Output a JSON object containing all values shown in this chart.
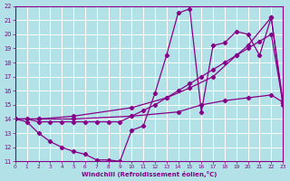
{
  "xlabel": "Windchill (Refroidissement éolien,°C)",
  "xlim": [
    0,
    23
  ],
  "ylim": [
    11,
    22
  ],
  "yticks": [
    11,
    12,
    13,
    14,
    15,
    16,
    17,
    18,
    19,
    20,
    21,
    22
  ],
  "xticks": [
    0,
    1,
    2,
    3,
    4,
    5,
    6,
    7,
    8,
    9,
    10,
    11,
    12,
    13,
    14,
    15,
    16,
    17,
    18,
    19,
    20,
    21,
    22,
    23
  ],
  "background_color": "#b2e2e8",
  "line_color": "#880088",
  "grid_color": "#c8e8e8",
  "lines": [
    {
      "x": [
        0,
        1,
        2,
        3,
        4,
        5,
        6,
        7,
        8,
        9,
        10,
        11,
        12,
        13,
        14,
        15,
        16,
        17,
        18,
        19,
        20,
        21,
        22,
        23
      ],
      "y": [
        14,
        13.8,
        13.0,
        12.4,
        12.0,
        11.7,
        11.5,
        11.1,
        11.1,
        11.0,
        13.2,
        13.5,
        15.8,
        18.5,
        21.5,
        21.8,
        14.5,
        19.2,
        19.4,
        20.2,
        20.0,
        18.5,
        21.2,
        15.3
      ]
    },
    {
      "x": [
        0,
        1,
        2,
        3,
        4,
        5,
        6,
        7,
        8,
        9,
        10,
        11,
        12,
        13,
        14,
        15,
        16,
        17,
        18,
        19,
        20,
        21,
        22,
        23
      ],
      "y": [
        14.0,
        14.0,
        13.8,
        13.8,
        13.8,
        13.8,
        13.8,
        13.8,
        13.8,
        13.8,
        14.2,
        14.6,
        15.0,
        15.5,
        16.0,
        16.5,
        17.0,
        17.5,
        18.0,
        18.5,
        19.0,
        19.5,
        20.0,
        15.2
      ]
    },
    {
      "x": [
        0,
        2,
        5,
        10,
        13,
        15,
        17,
        19,
        20,
        22,
        23
      ],
      "y": [
        14.0,
        14.0,
        14.2,
        14.8,
        15.5,
        16.2,
        17.0,
        18.5,
        19.2,
        21.2,
        15.0
      ]
    },
    {
      "x": [
        0,
        2,
        5,
        10,
        14,
        16,
        18,
        20,
        22,
        23
      ],
      "y": [
        14.0,
        14.0,
        14.0,
        14.2,
        14.5,
        15.0,
        15.3,
        15.5,
        15.7,
        15.2
      ]
    }
  ]
}
